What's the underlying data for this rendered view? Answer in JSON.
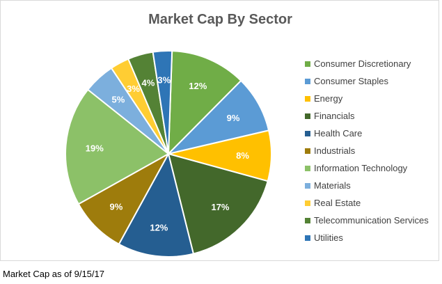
{
  "chart_data": {
    "type": "pie",
    "title": "Market Cap By Sector",
    "categories": [
      "Consumer Discretionary",
      "Consumer Staples",
      "Energy",
      "Financials",
      "Health Care",
      "Industrials",
      "Information Technology",
      "Materials",
      "Real Estate",
      "Telecommunication Services",
      "Utilities"
    ],
    "values": [
      12,
      9,
      8,
      17,
      12,
      9,
      19,
      5,
      3,
      4,
      3
    ],
    "labels": [
      "12%",
      "9%",
      "8%",
      "17%",
      "12%",
      "9%",
      "19%",
      "5%",
      "3%",
      "4%",
      "3%"
    ],
    "colors": [
      "#70ad47",
      "#5b9bd5",
      "#ffc000",
      "#43682b",
      "#255e91",
      "#9e7c0c",
      "#8cc168",
      "#7cafdd",
      "#ffcd33",
      "#548235",
      "#2e75b6"
    ],
    "legend_position": "right"
  },
  "footnote": "Market Cap as of 9/15/17"
}
